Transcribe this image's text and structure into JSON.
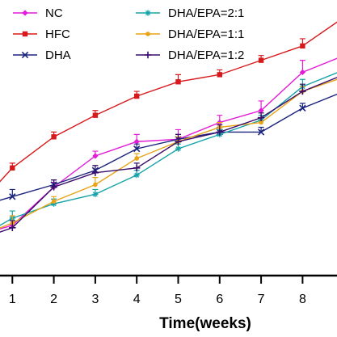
{
  "chart_data": {
    "type": "line",
    "xlabel": "Time(weeks)",
    "ylabel": "",
    "title": "",
    "x": [
      0,
      1,
      2,
      3,
      4,
      5,
      6,
      7,
      8,
      9
    ],
    "x_tick_labels": [
      "1",
      "2",
      "3",
      "4",
      "5",
      "6",
      "7",
      "8"
    ],
    "ylim": [
      0,
      100
    ],
    "legend_position": "top-left",
    "legend_columns": 2,
    "grid": false,
    "series": [
      {
        "name": "NC",
        "color": "#e31ad6",
        "marker": "diamond",
        "values": [
          16,
          21,
          37,
          50,
          56,
          57,
          64,
          69,
          85,
          92
        ],
        "errors": [
          0,
          0,
          2,
          2,
          3,
          4,
          3,
          4,
          5,
          0
        ]
      },
      {
        "name": "HFC",
        "color": "#d7191c",
        "marker": "square",
        "values": [
          26,
          45,
          58,
          67,
          75,
          81,
          84,
          90,
          96,
          108
        ],
        "errors": [
          0,
          2,
          2,
          2,
          2,
          3,
          2,
          2,
          3,
          0
        ]
      },
      {
        "name": "DHA",
        "color": "#1a237e",
        "marker": "x",
        "values": [
          28,
          33,
          38,
          44,
          53,
          57,
          60,
          60,
          70,
          77
        ],
        "errors": [
          0,
          3,
          2,
          2,
          2,
          2,
          2,
          2,
          2,
          0
        ]
      },
      {
        "name": "DHA/EPA=2:1",
        "color": "#16a3a8",
        "marker": "asterisk",
        "values": [
          14,
          24,
          30,
          34,
          42,
          53,
          59,
          65,
          79,
          86
        ],
        "errors": [
          0,
          3,
          2,
          2,
          2,
          2,
          2,
          2,
          3,
          0
        ]
      },
      {
        "name": "DHA/EPA=1:1",
        "color": "#e8a317",
        "marker": "circle",
        "values": [
          15,
          22,
          31,
          38,
          49,
          56,
          62,
          64,
          77,
          83
        ],
        "errors": [
          0,
          3,
          2,
          3,
          2,
          2,
          2,
          2,
          2,
          0
        ]
      },
      {
        "name": "DHA/EPA=1:2",
        "color": "#3a0d6b",
        "marker": "plus",
        "values": [
          14,
          20,
          37,
          43,
          45,
          56,
          60,
          66,
          77,
          84
        ],
        "errors": [
          0,
          3,
          3,
          3,
          2,
          3,
          3,
          2,
          3,
          0
        ]
      }
    ]
  }
}
